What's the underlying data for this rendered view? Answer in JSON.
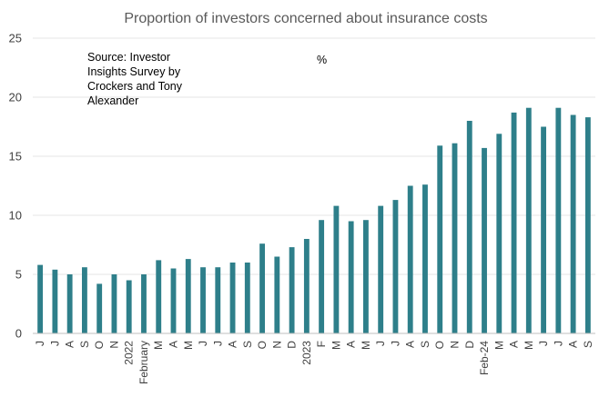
{
  "chart_data": {
    "type": "bar",
    "title": "Proportion of investors concerned about insurance costs",
    "source_note": [
      "Source: Investor",
      "Insights Survey by",
      "Crockers and Tony",
      "Alexander"
    ],
    "unit_label": "%",
    "xlabel": "",
    "ylabel": "",
    "ylim": [
      0,
      25
    ],
    "yticks": [
      0,
      5,
      10,
      15,
      20,
      25
    ],
    "grid": true,
    "bar_color": "#2e7f8a",
    "categories": [
      "J",
      "J",
      "A",
      "S",
      "O",
      "N",
      "2022",
      "February",
      "M",
      "A",
      "M",
      "J",
      "J",
      "A",
      "S",
      "O",
      "N",
      "D",
      "2023",
      "F",
      "M",
      "A",
      "M",
      "J",
      "J",
      "A",
      "S",
      "O",
      "N",
      "D",
      "Feb-24",
      "M",
      "A",
      "M",
      "J",
      "J",
      "A",
      "S"
    ],
    "values": [
      5.8,
      5.4,
      5.0,
      5.6,
      4.2,
      5.0,
      4.5,
      5.0,
      6.2,
      5.5,
      6.3,
      5.6,
      5.6,
      6.0,
      6.0,
      7.6,
      6.5,
      7.3,
      8.0,
      9.6,
      10.8,
      9.5,
      9.6,
      10.8,
      11.3,
      12.5,
      12.6,
      15.9,
      16.1,
      18.0,
      15.7,
      16.9,
      18.7,
      19.1,
      17.5,
      19.1,
      18.5,
      18.3
    ]
  }
}
